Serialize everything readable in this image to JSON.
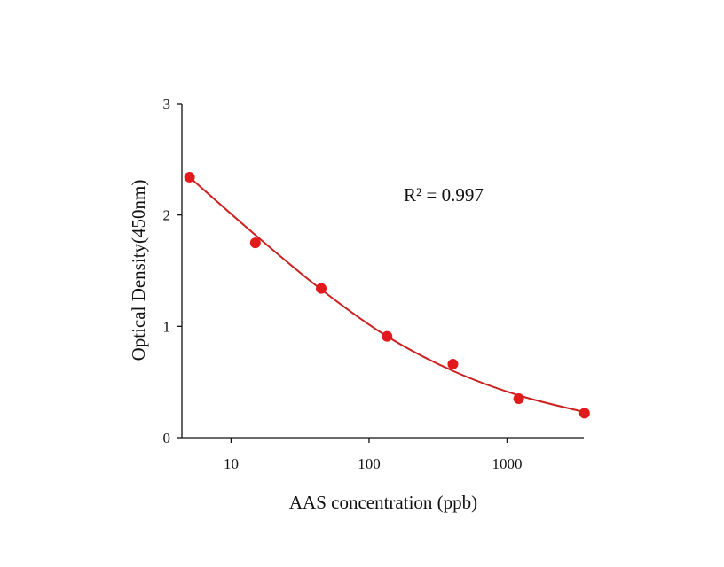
{
  "chart_data": {
    "type": "scatter",
    "title": "",
    "xlabel": "AAS concentration (ppb)",
    "ylabel": "Optical Density(450nm)",
    "x_scale": "log",
    "xlim": [
      4.4,
      3600
    ],
    "ylim": [
      0,
      3
    ],
    "x_ticks": [
      10,
      100,
      1000
    ],
    "x_tick_labels": [
      "10",
      "100",
      "1000"
    ],
    "y_ticks": [
      0,
      1,
      2,
      3
    ],
    "y_tick_labels": [
      "0",
      "1",
      "2",
      "3"
    ],
    "grid": false,
    "legend": "none",
    "annotation": "R² = 0.997",
    "series": [
      {
        "points": [
          {
            "x": 5,
            "y": 2.34
          },
          {
            "x": 15,
            "y": 1.75
          },
          {
            "x": 45,
            "y": 1.34
          },
          {
            "x": 135,
            "y": 0.91
          },
          {
            "x": 405,
            "y": 0.66
          },
          {
            "x": 1215,
            "y": 0.35
          },
          {
            "x": 3645,
            "y": 0.22
          }
        ],
        "color": "#e31a1c"
      }
    ],
    "fit_curve": {
      "color": "#cc2020",
      "points": [
        {
          "x": 5,
          "y": 2.34
        },
        {
          "x": 15,
          "y": 1.82
        },
        {
          "x": 45,
          "y": 1.33
        },
        {
          "x": 135,
          "y": 0.91
        },
        {
          "x": 405,
          "y": 0.6
        },
        {
          "x": 1215,
          "y": 0.38
        },
        {
          "x": 3645,
          "y": 0.23
        }
      ]
    }
  }
}
